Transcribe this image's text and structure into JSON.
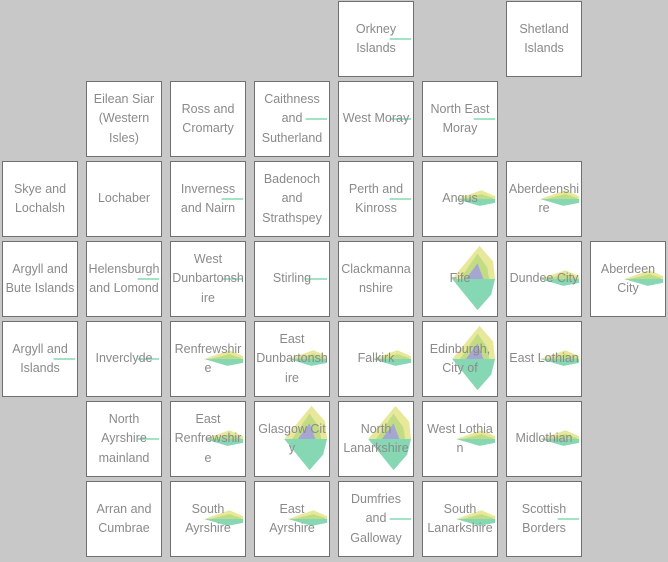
{
  "chart_data": {
    "type": "tile-grid map with glyph charts",
    "colors": [
      "#e8e89a",
      "#c2dc86",
      "#86d8b4",
      "#a6a6d2",
      "#6ec8a2"
    ],
    "tiles": [
      {
        "label": "Orkney\nIslands",
        "col": 4,
        "row": 0,
        "glyph": "line"
      },
      {
        "label": "Shetland\nIslands",
        "col": 6,
        "row": 0,
        "glyph": "none"
      },
      {
        "label": "Eilean Siar\n(Western\nIsles)",
        "col": 1,
        "row": 1,
        "glyph": "none"
      },
      {
        "label": "Ross and\nCromarty",
        "col": 2,
        "row": 1,
        "glyph": "none"
      },
      {
        "label": "Caithness\nand\nSutherland",
        "col": 3,
        "row": 1,
        "glyph": "line"
      },
      {
        "label": "West Moray",
        "col": 4,
        "row": 1,
        "glyph": "line"
      },
      {
        "label": "North East\nMoray",
        "col": 5,
        "row": 1,
        "glyph": "line"
      },
      {
        "label": "Skye and\nLochalsh",
        "col": 0,
        "row": 2,
        "glyph": "none"
      },
      {
        "label": "Lochaber",
        "col": 1,
        "row": 2,
        "glyph": "none"
      },
      {
        "label": "Inverness\nand Nairn",
        "col": 2,
        "row": 2,
        "glyph": "line"
      },
      {
        "label": "Badenoch\nand\nStrathspey",
        "col": 3,
        "row": 2,
        "glyph": "none"
      },
      {
        "label": "Perth and\nKinross",
        "col": 4,
        "row": 2,
        "glyph": "line"
      },
      {
        "label": "Angus",
        "col": 5,
        "row": 2,
        "glyph": "small"
      },
      {
        "label": "Aberdeenshire",
        "col": 6,
        "row": 2,
        "glyph": "small"
      },
      {
        "label": "Argyll and\nBute Islands",
        "col": 0,
        "row": 3,
        "glyph": "none"
      },
      {
        "label": "Helensburgh\nand Lomond",
        "col": 1,
        "row": 3,
        "glyph": "line"
      },
      {
        "label": "West\nDunbartonshire",
        "col": 2,
        "row": 3,
        "glyph": "line"
      },
      {
        "label": "Stirling",
        "col": 3,
        "row": 3,
        "glyph": "line"
      },
      {
        "label": "Clackmannanshire",
        "col": 4,
        "row": 3,
        "glyph": "none"
      },
      {
        "label": "Fife",
        "col": 5,
        "row": 3,
        "glyph": "big"
      },
      {
        "label": "Dundee City",
        "col": 6,
        "row": 3,
        "glyph": "small"
      },
      {
        "label": "Aberdeen\nCity",
        "col": 7,
        "row": 3,
        "glyph": "small"
      },
      {
        "label": "Argyll and\nIslands",
        "col": 0,
        "row": 4,
        "glyph": "line"
      },
      {
        "label": "Inverclyde",
        "col": 1,
        "row": 4,
        "glyph": "line"
      },
      {
        "label": "Renfrewshire",
        "col": 2,
        "row": 4,
        "glyph": "small"
      },
      {
        "label": "East\nDunbartonshire",
        "col": 3,
        "row": 4,
        "glyph": "small"
      },
      {
        "label": "Falkirk",
        "col": 4,
        "row": 4,
        "glyph": "small"
      },
      {
        "label": "Edinburgh,\nCity of",
        "col": 5,
        "row": 4,
        "glyph": "big"
      },
      {
        "label": "East Lothian",
        "col": 6,
        "row": 4,
        "glyph": "small"
      },
      {
        "label": "North\nAyrshire\nmainland",
        "col": 1,
        "row": 5,
        "glyph": "line"
      },
      {
        "label": "East\nRenfrewshire",
        "col": 2,
        "row": 5,
        "glyph": "small"
      },
      {
        "label": "Glasgow City",
        "col": 3,
        "row": 5,
        "glyph": "big"
      },
      {
        "label": "North\nLanarkshire",
        "col": 4,
        "row": 5,
        "glyph": "big"
      },
      {
        "label": "West Lothian",
        "col": 5,
        "row": 5,
        "glyph": "small"
      },
      {
        "label": "Midlothian",
        "col": 6,
        "row": 5,
        "glyph": "small"
      },
      {
        "label": "Arran and\nCumbrae",
        "col": 1,
        "row": 6,
        "glyph": "none"
      },
      {
        "label": "South\nAyrshire",
        "col": 2,
        "row": 6,
        "glyph": "small"
      },
      {
        "label": "East\nAyrshire",
        "col": 3,
        "row": 6,
        "glyph": "small"
      },
      {
        "label": "Dumfries\nand\nGalloway",
        "col": 4,
        "row": 6,
        "glyph": "line"
      },
      {
        "label": "South\nLanarkshire",
        "col": 5,
        "row": 6,
        "glyph": "small"
      },
      {
        "label": "Scottish\nBorders",
        "col": 6,
        "row": 6,
        "glyph": "line"
      }
    ]
  }
}
